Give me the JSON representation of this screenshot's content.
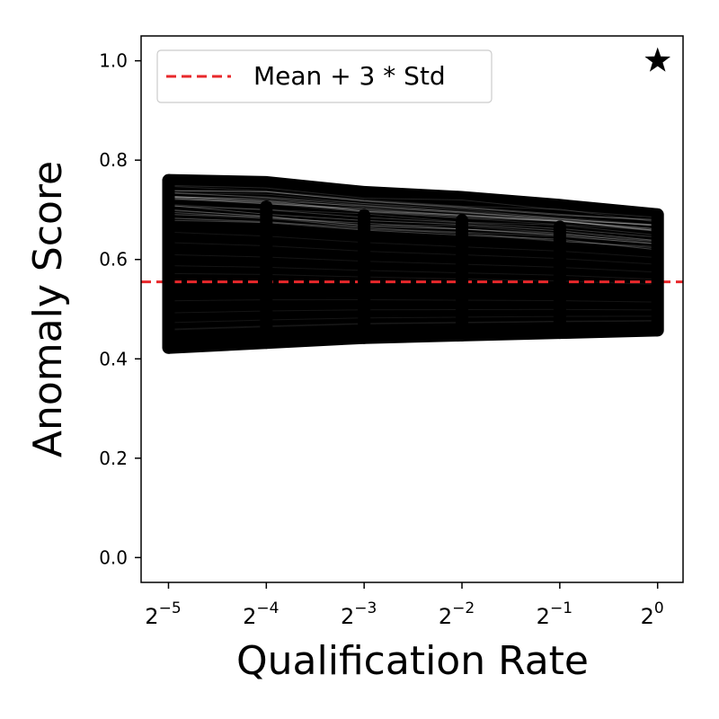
{
  "chart_data": {
    "type": "line",
    "xlabel": "Qualification Rate",
    "ylabel": "Anomaly Score",
    "x": [
      -5,
      -4,
      -3,
      -2,
      -1,
      0
    ],
    "x_tick_labels": [
      {
        "base": "2",
        "exp": "−5"
      },
      {
        "base": "2",
        "exp": "−4"
      },
      {
        "base": "2",
        "exp": "−3"
      },
      {
        "base": "2",
        "exp": "−2"
      },
      {
        "base": "2",
        "exp": "−1"
      },
      {
        "base": "2",
        "exp": "0"
      }
    ],
    "x_scale": "log2",
    "xlim": [
      -5.28,
      0.26
    ],
    "ylim": [
      -0.05,
      1.05
    ],
    "y_ticks": [
      0.0,
      0.2,
      0.4,
      0.6,
      0.8,
      1.0
    ],
    "y_tick_labels": [
      "0.0",
      "0.2",
      "0.4",
      "0.6",
      "0.8",
      "1.0"
    ],
    "line_color": "#000000",
    "threshold": {
      "label": "Mean + 3 * Std",
      "value": 0.555,
      "color": "#e8282b",
      "style": "dashed"
    },
    "series_envelope": {
      "upper": [
        0.772,
        0.768,
        0.748,
        0.738,
        0.722,
        0.703
      ],
      "lower": [
        0.41,
        0.42,
        0.43,
        0.435,
        0.44,
        0.445
      ],
      "dense_top": [
        0.68,
        0.67,
        0.655,
        0.645,
        0.635,
        0.62
      ]
    },
    "highlight_point": {
      "x": 0,
      "y": 1.0,
      "marker": "star"
    },
    "legend": {
      "position": "top-left",
      "entries": [
        "Mean + 3 * Std"
      ]
    },
    "grid": false
  }
}
